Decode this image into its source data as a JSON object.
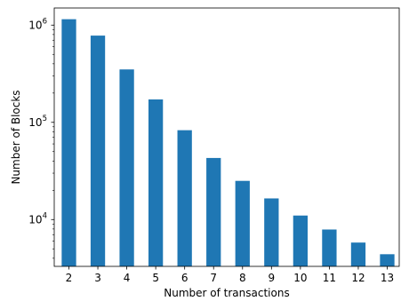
{
  "chart_data": {
    "type": "bar",
    "title": "",
    "xlabel": "Number of transactions",
    "ylabel": "Number of Blocks",
    "y_scale": "log",
    "ylim": [
      3300,
      1500000
    ],
    "grid": false,
    "legend": "none",
    "bar_color": "#1f77b4",
    "categories": [
      "2",
      "3",
      "4",
      "5",
      "6",
      "7",
      "8",
      "9",
      "10",
      "11",
      "12",
      "13"
    ],
    "values": [
      1150000,
      780000,
      350000,
      172000,
      83000,
      43000,
      25000,
      16500,
      11000,
      7900,
      5800,
      4400
    ],
    "y_ticks": [
      {
        "value": 10000,
        "base": "10",
        "exp": "4"
      },
      {
        "value": 100000,
        "base": "10",
        "exp": "5"
      },
      {
        "value": 1000000,
        "base": "10",
        "exp": "6"
      }
    ]
  }
}
